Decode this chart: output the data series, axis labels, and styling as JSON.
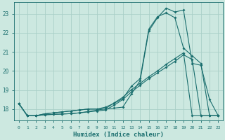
{
  "xlabel": "Humidex (Indice chaleur)",
  "bg_color": "#cce8e0",
  "grid_color": "#aacfc8",
  "line_color": "#1a6e6e",
  "xlim": [
    -0.5,
    23.5
  ],
  "ylim": [
    17.4,
    23.6
  ],
  "yticks": [
    18,
    19,
    20,
    21,
    22,
    23
  ],
  "xticks": [
    0,
    1,
    2,
    3,
    4,
    5,
    6,
    7,
    8,
    9,
    10,
    11,
    12,
    13,
    14,
    15,
    16,
    17,
    18,
    19,
    20,
    21,
    22,
    23
  ],
  "line1_x": [
    0,
    1,
    2,
    3,
    4,
    5,
    6,
    7,
    8,
    9,
    10,
    11,
    12,
    13,
    14,
    15,
    16,
    17,
    18,
    19,
    20,
    21,
    22,
    23
  ],
  "line1_y": [
    18.3,
    17.65,
    17.65,
    17.75,
    17.8,
    17.85,
    17.9,
    17.95,
    18.0,
    18.0,
    18.0,
    18.05,
    18.1,
    18.8,
    19.5,
    22.1,
    22.8,
    23.3,
    23.1,
    23.2,
    20.4,
    20.3,
    18.5,
    17.65
  ],
  "line2_x": [
    0,
    1,
    2,
    3,
    4,
    5,
    6,
    7,
    8,
    9,
    10,
    11,
    12,
    13,
    14,
    15,
    16,
    17,
    18,
    19,
    20,
    21,
    22,
    23
  ],
  "line2_y": [
    18.3,
    17.65,
    17.65,
    17.75,
    17.8,
    17.85,
    17.9,
    17.95,
    18.0,
    18.0,
    18.1,
    18.3,
    18.55,
    19.2,
    19.6,
    22.2,
    22.85,
    23.05,
    22.8,
    21.2,
    20.8,
    20.4,
    17.65,
    17.65
  ],
  "line3_x": [
    0,
    1,
    2,
    3,
    4,
    5,
    6,
    7,
    8,
    9,
    10,
    11,
    12,
    13,
    14,
    15,
    16,
    17,
    18,
    19,
    20,
    21,
    22,
    23
  ],
  "line3_y": [
    18.3,
    17.65,
    17.65,
    17.7,
    17.72,
    17.74,
    17.76,
    17.8,
    17.85,
    17.9,
    17.95,
    18.2,
    18.5,
    18.9,
    19.25,
    19.6,
    19.9,
    20.2,
    20.5,
    20.85,
    20.6,
    17.65,
    17.65,
    17.65
  ],
  "line4_x": [
    0,
    1,
    2,
    3,
    4,
    5,
    6,
    7,
    8,
    9,
    10,
    11,
    12,
    13,
    14,
    15,
    16,
    17,
    18,
    19,
    20,
    21,
    22,
    23
  ],
  "line4_y": [
    18.3,
    17.65,
    17.65,
    17.7,
    17.72,
    17.74,
    17.76,
    17.8,
    17.87,
    17.94,
    18.02,
    18.32,
    18.62,
    19.02,
    19.35,
    19.7,
    20.0,
    20.35,
    20.65,
    20.95,
    17.65,
    17.65,
    17.65,
    17.65
  ]
}
